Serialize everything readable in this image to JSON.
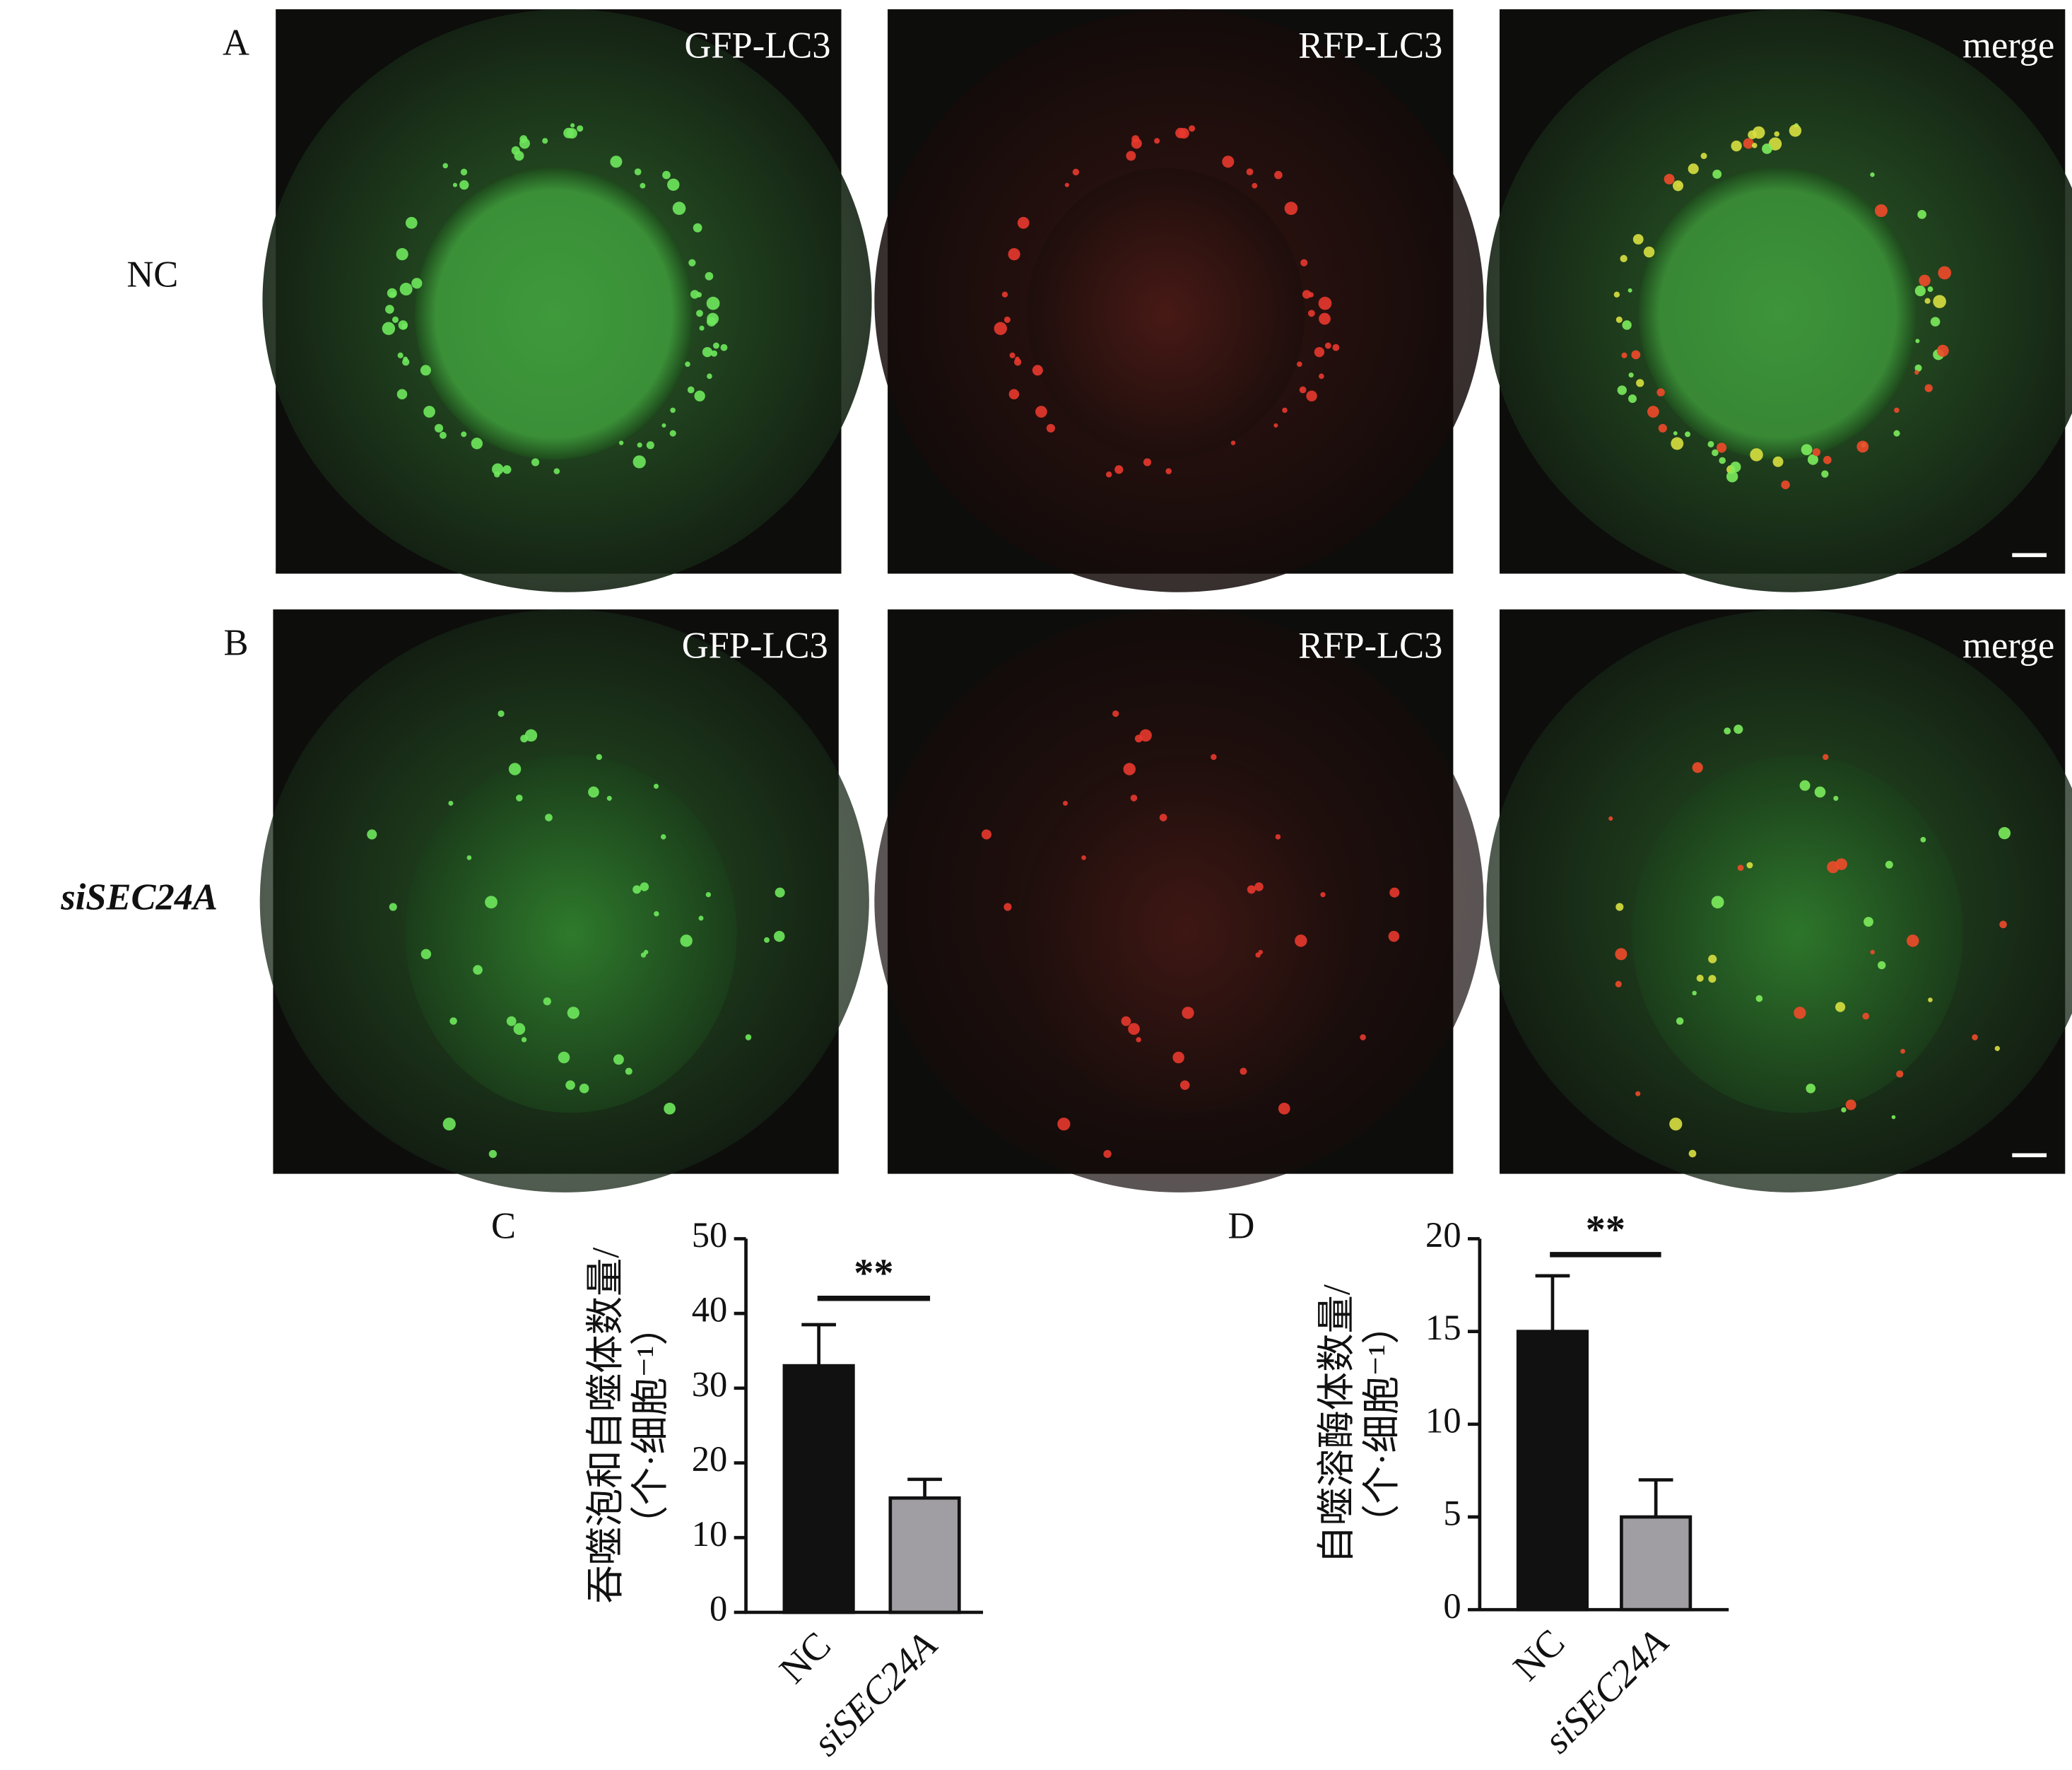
{
  "figure": {
    "panel_labels": [
      "A",
      "B"
    ],
    "rows": [
      {
        "label": "NC",
        "channels": [
          "GFP-LC3",
          "RFP-LC3",
          "merge"
        ]
      },
      {
        "label": "siSEC24A",
        "channels": [
          "GFP-LC3",
          "RFP-LC3",
          "merge"
        ]
      }
    ]
  },
  "chart_data": [
    {
      "type": "bar",
      "panel_label": "C",
      "ylabel": [
        "吞噬泡和自噬体数量/",
        "（个·细胞⁻¹）"
      ],
      "categories": [
        "NC",
        "siSEC24A"
      ],
      "values": [
        33,
        15.3
      ],
      "errors": [
        5.5,
        2.5
      ],
      "colors": [
        "#111111",
        "#a09ea2"
      ],
      "ylim": [
        0,
        50
      ],
      "yticks": [
        0,
        10,
        20,
        30,
        40,
        50
      ],
      "annotation": "**"
    },
    {
      "type": "bar",
      "panel_label": "D",
      "ylabel": [
        "自噬溶酶体数量/",
        "（个·细胞⁻¹）"
      ],
      "categories": [
        "NC",
        "siSEC24A"
      ],
      "values": [
        15,
        5
      ],
      "errors": [
        3,
        2
      ],
      "colors": [
        "#111111",
        "#a09ea2"
      ],
      "ylim": [
        0,
        20
      ],
      "yticks": [
        0,
        5,
        10,
        15,
        20
      ],
      "annotation": "**"
    }
  ]
}
